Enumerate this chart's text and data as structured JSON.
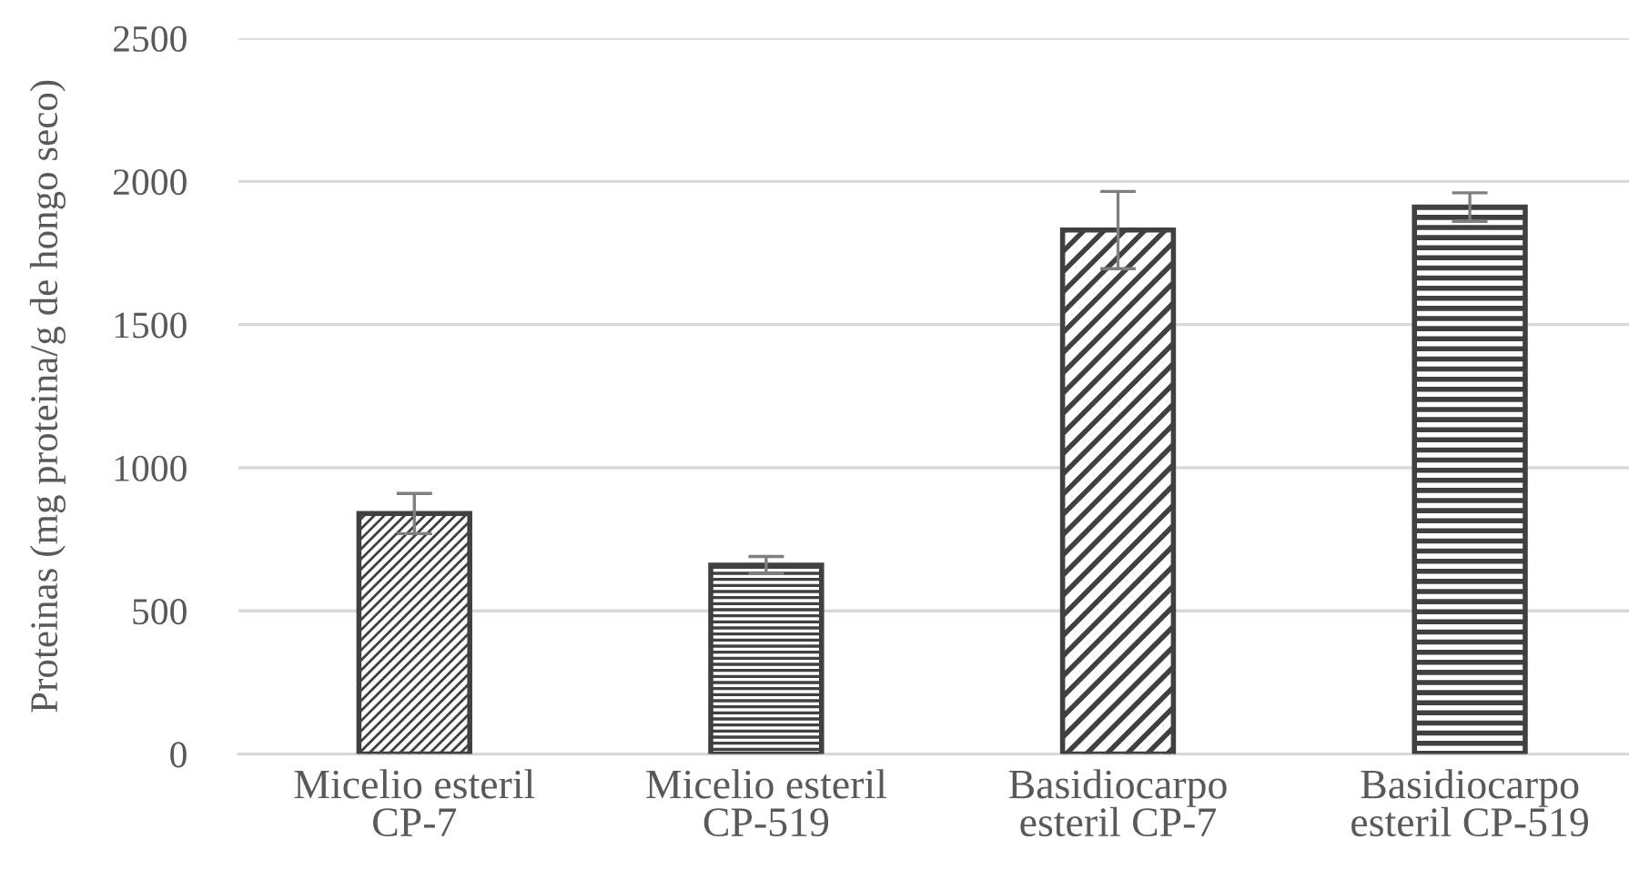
{
  "chart_data": {
    "type": "bar",
    "ylabel": "Proteinas (mg proteina/g de hongo seco)",
    "categories": [
      "Micelio esteril\nCP-7",
      "Micelio esteril\nCP-519",
      "Basidiocarpo\nesteril CP-7",
      "Basidiocarpo\nesteril CP-519"
    ],
    "values": [
      840,
      660,
      1830,
      1910
    ],
    "errors": [
      70,
      30,
      135,
      50
    ],
    "colors": [
      "#404040",
      "#404040",
      "#404040",
      "#404040"
    ],
    "ylim": [
      0,
      2500
    ],
    "yticks": [
      0,
      500,
      1000,
      1500,
      2000,
      2500
    ],
    "grid": "y",
    "legend": false
  }
}
